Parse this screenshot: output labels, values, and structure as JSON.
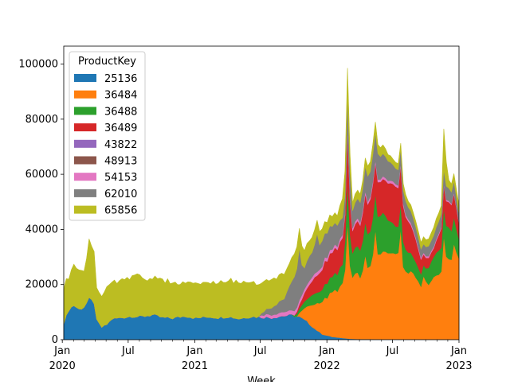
{
  "chart_data": {
    "type": "area",
    "stacked": true,
    "title": "",
    "xlabel": "Week",
    "ylabel": "",
    "x_start": "2020-01-05",
    "x_end": "2023-01-01",
    "x_freq": "weekly",
    "ylim": [
      0,
      106500
    ],
    "y_ticks": [
      0,
      20000,
      40000,
      60000,
      80000,
      100000
    ],
    "x_major_ticks": [
      {
        "date": "2020-01-01",
        "label": "Jan",
        "sublabel": "2020"
      },
      {
        "date": "2020-07-01",
        "label": "Jul",
        "sublabel": ""
      },
      {
        "date": "2021-01-01",
        "label": "Jan",
        "sublabel": "2021"
      },
      {
        "date": "2021-07-01",
        "label": "Jul",
        "sublabel": ""
      },
      {
        "date": "2022-01-01",
        "label": "Jan",
        "sublabel": "2022"
      },
      {
        "date": "2022-07-01",
        "label": "Jul",
        "sublabel": ""
      },
      {
        "date": "2023-01-01",
        "label": "Jan",
        "sublabel": "2023"
      }
    ],
    "grid": false,
    "legend": {
      "title": "ProductKey",
      "position": "upper-left"
    },
    "series": [
      {
        "name": "25136",
        "color": "#1f77b4",
        "keypoints": [
          [
            "2020-01-05",
            6000
          ],
          [
            "2020-01-19",
            11000
          ],
          [
            "2020-02-02",
            12500
          ],
          [
            "2020-02-16",
            11000
          ],
          [
            "2020-03-01",
            12000
          ],
          [
            "2020-03-15",
            14500
          ],
          [
            "2020-03-29",
            13500
          ],
          [
            "2020-04-05",
            7000
          ],
          [
            "2020-04-19",
            4500
          ],
          [
            "2020-05-03",
            5500
          ],
          [
            "2020-05-17",
            7500
          ],
          [
            "2020-06-14",
            8000
          ],
          [
            "2020-07-12",
            8500
          ],
          [
            "2020-08-02",
            8300
          ],
          [
            "2020-09-06",
            9000
          ],
          [
            "2020-10-04",
            8000
          ],
          [
            "2020-11-01",
            7800
          ],
          [
            "2020-12-06",
            8600
          ],
          [
            "2021-01-03",
            7800
          ],
          [
            "2021-02-07",
            8300
          ],
          [
            "2021-03-07",
            8000
          ],
          [
            "2021-04-04",
            8400
          ],
          [
            "2021-05-02",
            7600
          ],
          [
            "2021-06-06",
            8400
          ],
          [
            "2021-07-04",
            8200
          ],
          [
            "2021-08-01",
            8000
          ],
          [
            "2021-08-29",
            8600
          ],
          [
            "2021-09-26",
            8900
          ],
          [
            "2021-10-17",
            8200
          ],
          [
            "2021-11-07",
            6500
          ],
          [
            "2021-11-28",
            4000
          ],
          [
            "2021-12-19",
            2000
          ],
          [
            "2022-01-16",
            1000
          ],
          [
            "2022-02-13",
            600
          ],
          [
            "2022-03-13",
            300
          ],
          [
            "2022-04-10",
            200
          ],
          [
            "2022-06-05",
            100
          ],
          [
            "2022-08-07",
            50
          ],
          [
            "2023-01-01",
            0
          ]
        ]
      },
      {
        "name": "36484",
        "color": "#ff7f0e",
        "keypoints": [
          [
            "2020-01-05",
            0
          ],
          [
            "2021-10-10",
            0
          ],
          [
            "2021-10-31",
            4000
          ],
          [
            "2021-11-21",
            8000
          ],
          [
            "2021-12-19",
            12000
          ],
          [
            "2022-01-16",
            16000
          ],
          [
            "2022-02-13",
            19000
          ],
          [
            "2022-02-27",
            30000
          ],
          [
            "2022-03-13",
            22000
          ],
          [
            "2022-04-10",
            24000
          ],
          [
            "2022-05-08",
            29000
          ],
          [
            "2022-06-05",
            31000
          ],
          [
            "2022-07-03",
            33000
          ],
          [
            "2022-07-31",
            27000
          ],
          [
            "2022-08-28",
            24000
          ],
          [
            "2022-09-25",
            19000
          ],
          [
            "2022-10-16",
            22000
          ],
          [
            "2022-11-06",
            24000
          ],
          [
            "2022-11-20",
            28000
          ],
          [
            "2022-12-11",
            30000
          ],
          [
            "2023-01-01",
            30000
          ]
        ]
      },
      {
        "name": "36488",
        "color": "#2ca02c",
        "keypoints": [
          [
            "2020-01-05",
            0
          ],
          [
            "2021-09-26",
            0
          ],
          [
            "2021-10-24",
            2000
          ],
          [
            "2021-11-21",
            3500
          ],
          [
            "2021-12-19",
            4500
          ],
          [
            "2022-01-16",
            5500
          ],
          [
            "2022-02-13",
            7000
          ],
          [
            "2022-02-27",
            14000
          ],
          [
            "2022-03-13",
            9000
          ],
          [
            "2022-04-10",
            11000
          ],
          [
            "2022-05-08",
            13000
          ],
          [
            "2022-06-05",
            14000
          ],
          [
            "2022-07-03",
            11000
          ],
          [
            "2022-07-31",
            9000
          ],
          [
            "2022-08-28",
            6000
          ],
          [
            "2022-09-25",
            4000
          ],
          [
            "2022-10-16",
            7000
          ],
          [
            "2022-11-13",
            9000
          ],
          [
            "2022-12-04",
            12000
          ],
          [
            "2022-12-25",
            8000
          ],
          [
            "2023-01-01",
            7000
          ]
        ]
      },
      {
        "name": "36489",
        "color": "#d62728",
        "keypoints": [
          [
            "2020-01-05",
            0
          ],
          [
            "2021-10-03",
            0
          ],
          [
            "2021-10-31",
            3000
          ],
          [
            "2021-11-28",
            6000
          ],
          [
            "2021-12-26",
            8000
          ],
          [
            "2022-01-23",
            9000
          ],
          [
            "2022-02-20",
            10000
          ],
          [
            "2022-02-27",
            18000
          ],
          [
            "2022-03-13",
            8000
          ],
          [
            "2022-04-10",
            10000
          ],
          [
            "2022-05-08",
            12000
          ],
          [
            "2022-06-05",
            12000
          ],
          [
            "2022-07-03",
            14000
          ],
          [
            "2022-07-31",
            13000
          ],
          [
            "2022-08-28",
            9000
          ],
          [
            "2022-09-25",
            4000
          ],
          [
            "2022-10-23",
            3000
          ],
          [
            "2022-11-20",
            8000
          ],
          [
            "2022-12-11",
            10000
          ],
          [
            "2023-01-01",
            6000
          ]
        ]
      },
      {
        "name": "43822",
        "color": "#9467bd",
        "keypoints": [
          [
            "2020-01-05",
            0
          ],
          [
            "2023-01-01",
            0
          ]
        ]
      },
      {
        "name": "48913",
        "color": "#8c564b",
        "keypoints": [
          [
            "2020-01-05",
            0
          ],
          [
            "2023-01-01",
            0
          ]
        ]
      },
      {
        "name": "54153",
        "color": "#e377c2",
        "keypoints": [
          [
            "2020-01-05",
            0
          ],
          [
            "2021-06-27",
            0
          ],
          [
            "2021-07-04",
            1000
          ],
          [
            "2021-08-29",
            1400
          ],
          [
            "2021-10-03",
            1500
          ],
          [
            "2022-01-02",
            1200
          ],
          [
            "2022-04-03",
            1000
          ],
          [
            "2022-07-03",
            900
          ],
          [
            "2022-10-02",
            600
          ],
          [
            "2023-01-01",
            400
          ]
        ]
      },
      {
        "name": "62010",
        "color": "#7f7f7f",
        "keypoints": [
          [
            "2020-01-05",
            0
          ],
          [
            "2021-06-27",
            0
          ],
          [
            "2021-07-11",
            1500
          ],
          [
            "2021-08-08",
            3000
          ],
          [
            "2021-09-05",
            5000
          ],
          [
            "2021-09-26",
            10000
          ],
          [
            "2021-10-17",
            15000
          ],
          [
            "2021-10-31",
            8000
          ],
          [
            "2021-11-28",
            10000
          ],
          [
            "2021-12-26",
            9000
          ],
          [
            "2022-01-23",
            8000
          ],
          [
            "2022-02-20",
            6000
          ],
          [
            "2022-02-27",
            12000
          ],
          [
            "2022-03-13",
            6000
          ],
          [
            "2022-04-10",
            8000
          ],
          [
            "2022-05-08",
            10000
          ],
          [
            "2022-06-05",
            8000
          ],
          [
            "2022-07-03",
            6000
          ],
          [
            "2022-07-31",
            5000
          ],
          [
            "2022-08-28",
            4000
          ],
          [
            "2022-09-25",
            3000
          ],
          [
            "2022-10-23",
            4000
          ],
          [
            "2022-11-20",
            5000
          ],
          [
            "2022-12-18",
            4000
          ],
          [
            "2023-01-01",
            3000
          ]
        ]
      },
      {
        "name": "65856",
        "color": "#bcbd22",
        "keypoints": [
          [
            "2020-01-05",
            13000
          ],
          [
            "2020-01-19",
            12000
          ],
          [
            "2020-02-02",
            16000
          ],
          [
            "2020-02-16",
            14000
          ],
          [
            "2020-03-01",
            13000
          ],
          [
            "2020-03-15",
            21000
          ],
          [
            "2020-03-29",
            19000
          ],
          [
            "2020-04-05",
            12000
          ],
          [
            "2020-04-19",
            11000
          ],
          [
            "2020-05-03",
            13000
          ],
          [
            "2020-05-31",
            13000
          ],
          [
            "2020-06-28",
            14000
          ],
          [
            "2020-07-26",
            15000
          ],
          [
            "2020-08-23",
            13000
          ],
          [
            "2020-09-20",
            14000
          ],
          [
            "2020-10-18",
            13000
          ],
          [
            "2020-11-15",
            12000
          ],
          [
            "2020-12-13",
            12500
          ],
          [
            "2021-01-10",
            12000
          ],
          [
            "2021-02-14",
            13000
          ],
          [
            "2021-03-14",
            12500
          ],
          [
            "2021-04-11",
            13500
          ],
          [
            "2021-05-09",
            13000
          ],
          [
            "2021-06-06",
            13500
          ],
          [
            "2021-06-27",
            12000
          ],
          [
            "2021-07-11",
            11000
          ],
          [
            "2021-08-08",
            10000
          ],
          [
            "2021-09-05",
            9000
          ],
          [
            "2021-10-03",
            8000
          ],
          [
            "2021-11-07",
            6000
          ],
          [
            "2021-12-05",
            5000
          ],
          [
            "2022-01-02",
            4000
          ],
          [
            "2022-01-30",
            3500
          ],
          [
            "2022-02-27",
            10000
          ],
          [
            "2022-03-13",
            3000
          ],
          [
            "2022-04-10",
            3000
          ],
          [
            "2022-05-08",
            4000
          ],
          [
            "2022-06-05",
            3000
          ],
          [
            "2022-07-03",
            2000
          ],
          [
            "2022-07-31",
            2500
          ],
          [
            "2022-08-28",
            2000
          ],
          [
            "2022-09-25",
            2500
          ],
          [
            "2022-10-23",
            3000
          ],
          [
            "2022-11-13",
            3000
          ],
          [
            "2022-11-20",
            14000
          ],
          [
            "2022-12-04",
            3000
          ],
          [
            "2023-01-01",
            3000
          ]
        ]
      }
    ],
    "spikes": [
      {
        "date": "2022-02-27",
        "series": "36484",
        "extra": 12000
      },
      {
        "date": "2022-04-17",
        "series": "36484",
        "extra": 4000
      },
      {
        "date": "2022-05-15",
        "series": "36484",
        "extra": 10000
      },
      {
        "date": "2022-07-24",
        "series": "36484",
        "extra": 12000
      },
      {
        "date": "2022-09-25",
        "series": "36484",
        "extra": 5000
      },
      {
        "date": "2022-11-20",
        "series": "36484",
        "extra": 10000
      },
      {
        "date": "2022-12-18",
        "series": "36484",
        "extra": 6000
      },
      {
        "date": "2021-10-17",
        "series": "62010",
        "extra": 4000
      },
      {
        "date": "2021-12-05",
        "series": "62010",
        "extra": 4000
      }
    ]
  }
}
